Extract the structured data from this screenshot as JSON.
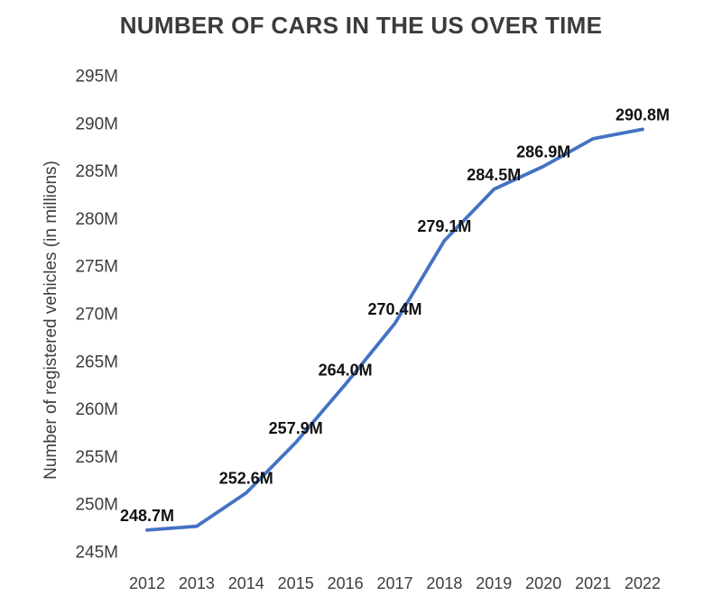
{
  "title": "NUMBER OF CARS IN THE US OVER TIME",
  "chart_data": {
    "type": "line",
    "title": "NUMBER OF CARS IN THE US OVER TIME",
    "xlabel": "",
    "ylabel": "Number of registered vehicles (in millions)",
    "x": [
      2012,
      2013,
      2014,
      2015,
      2016,
      2017,
      2018,
      2019,
      2020,
      2021,
      2022
    ],
    "values": [
      248.7,
      249.1,
      252.6,
      257.9,
      264.0,
      270.4,
      279.1,
      284.5,
      286.9,
      289.8,
      290.8
    ],
    "point_labels": [
      "248.7M",
      "",
      "252.6M",
      "257.9M",
      "264.0M",
      "270.4M",
      "279.1M",
      "284.5M",
      "286.9M",
      "",
      "290.8M"
    ],
    "x_ticks": [
      "2012",
      "2013",
      "2014",
      "2015",
      "2016",
      "2017",
      "2018",
      "2019",
      "2020",
      "2021",
      "2022"
    ],
    "y_ticks": [
      "245M",
      "250M",
      "255M",
      "260M",
      "265M",
      "270M",
      "275M",
      "280M",
      "285M",
      "290M",
      "295M"
    ],
    "ylim": [
      245,
      295
    ],
    "grid": false,
    "legend": "none"
  },
  "colors": {
    "line": "#4472c4",
    "title_text": "#3b3b3b",
    "axis_text": "#3d3d3d",
    "point_label_text": "#111111",
    "background": "#ffffff"
  }
}
